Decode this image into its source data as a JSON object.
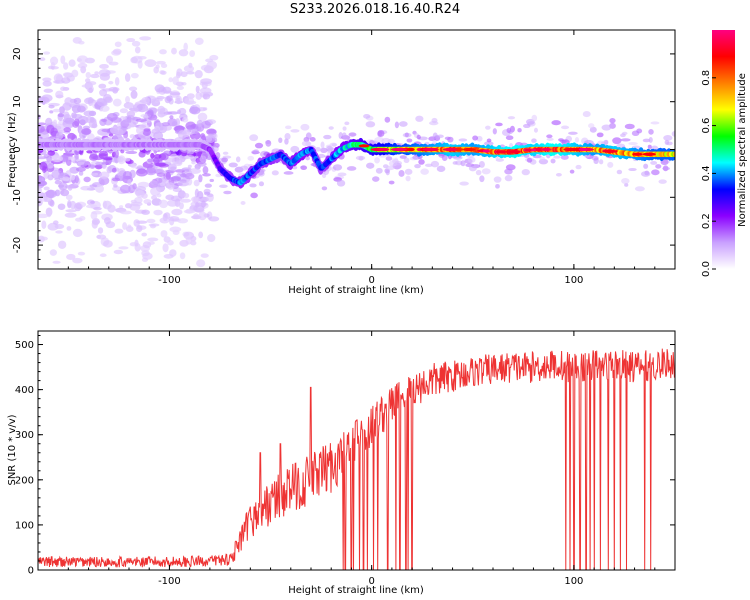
{
  "figure_title": "S233.2026.018.16.40.R24",
  "chart_data": [
    {
      "type": "heatmap",
      "title": "S233.2026.018.16.40.R24",
      "xlabel": "Height of straight line (km)",
      "ylabel": "Frequency (Hz)",
      "xlim": [
        -165,
        150
      ],
      "ylim": [
        -25,
        25
      ],
      "xticks": [
        -100,
        0,
        100
      ],
      "xtick_labels": [
        "-100",
        "0",
        "100"
      ],
      "yticks": [
        -20,
        -10,
        0,
        10,
        20
      ],
      "ytick_labels": [
        "-20",
        "-10",
        "0",
        "10",
        "20"
      ],
      "ridge": {
        "x": [
          -165,
          -140,
          -120,
          -100,
          -85,
          -80,
          -75,
          -70,
          -65,
          -60,
          -55,
          -50,
          -45,
          -40,
          -35,
          -30,
          -25,
          -20,
          -15,
          -10,
          -5,
          0,
          10,
          20,
          30,
          40,
          50,
          60,
          70,
          80,
          90,
          100,
          110,
          120,
          130,
          140,
          150
        ],
        "freq": [
          1,
          1,
          1,
          1,
          1,
          0,
          -4,
          -6,
          -7,
          -5,
          -3,
          -2,
          -1,
          -3,
          -1,
          0,
          -4,
          -2,
          0,
          1,
          1,
          0,
          0,
          0,
          0,
          0,
          0,
          -0.5,
          -0.5,
          0,
          0,
          0,
          0,
          -0.5,
          -1,
          -1,
          -1
        ],
        "amplitude": [
          0.15,
          0.15,
          0.15,
          0.15,
          0.15,
          0.2,
          0.3,
          0.35,
          0.4,
          0.4,
          0.35,
          0.4,
          0.35,
          0.4,
          0.45,
          0.4,
          0.35,
          0.4,
          0.45,
          0.5,
          0.55,
          0.6,
          0.7,
          0.75,
          0.8,
          0.85,
          0.8,
          0.85,
          0.9,
          0.85,
          0.9,
          0.85,
          0.8,
          0.85,
          0.8,
          0.75,
          0.75
        ]
      },
      "colorbar": {
        "label": "Normalized spectral amplitude",
        "range": [
          0,
          1
        ],
        "ticks": [
          0.0,
          0.2,
          0.4,
          0.6,
          0.8
        ],
        "tick_labels": [
          "0.0",
          "0.2",
          "0.4",
          "0.6",
          "0.8"
        ],
        "colormap": [
          "#ffffff",
          "#c9a0ff",
          "#8b00ff",
          "#0000ff",
          "#00ffff",
          "#00ff00",
          "#ffff00",
          "#ff7f00",
          "#ff0000",
          "#ff0080"
        ]
      }
    },
    {
      "type": "line",
      "title": "",
      "xlabel": "Height of straight line (km)",
      "ylabel": "SNR (10 * v/v)",
      "xlim": [
        -165,
        150
      ],
      "ylim": [
        0,
        530
      ],
      "xticks": [
        -100,
        0,
        100
      ],
      "xtick_labels": [
        "-100",
        "0",
        "100"
      ],
      "yticks": [
        0,
        100,
        200,
        300,
        400,
        500
      ],
      "ytick_labels": [
        "0",
        "100",
        "200",
        "300",
        "400",
        "500"
      ],
      "color": "#ee3333",
      "trend": {
        "x": [
          -165,
          -140,
          -120,
          -100,
          -80,
          -70,
          -65,
          -60,
          -50,
          -40,
          -30,
          -20,
          -10,
          0,
          10,
          20,
          30,
          40,
          50,
          60,
          70,
          80,
          90,
          100,
          110,
          120,
          130,
          140,
          150
        ],
        "y": [
          18,
          18,
          18,
          18,
          20,
          25,
          60,
          110,
          150,
          180,
          200,
          230,
          270,
          320,
          370,
          400,
          420,
          430,
          440,
          445,
          450,
          450,
          455,
          450,
          455,
          455,
          450,
          455,
          460
        ]
      },
      "noise_amplitude": [
        12,
        12,
        12,
        12,
        12,
        15,
        30,
        40,
        50,
        55,
        60,
        60,
        55,
        50,
        45,
        40,
        40,
        35,
        35,
        35,
        35,
        35,
        35,
        35,
        35,
        35,
        35,
        35,
        35
      ],
      "spikes": {
        "x": [
          -55,
          -45,
          -30,
          -10
        ],
        "y": [
          260,
          280,
          405,
          330
        ]
      },
      "dropouts": {
        "x": [
          -14,
          -13,
          -10,
          -9,
          -6,
          -4,
          -2,
          1,
          3,
          8,
          12,
          14,
          17,
          18,
          20,
          96,
          98,
          100,
          103,
          106,
          108,
          110,
          113,
          117,
          120,
          123,
          126,
          135,
          138
        ],
        "y": 0
      }
    }
  ]
}
